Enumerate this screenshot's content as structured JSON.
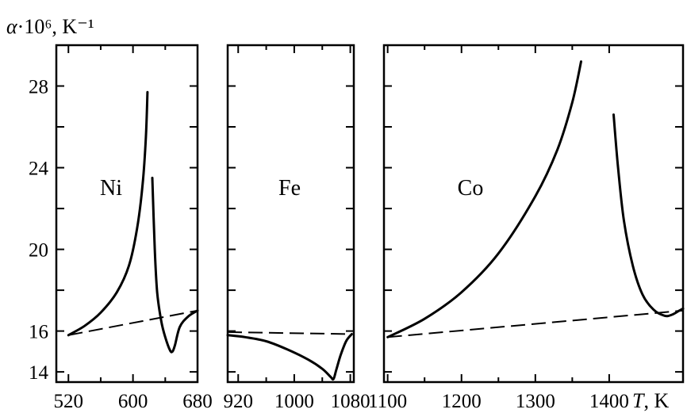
{
  "chart_data": {
    "type": "line",
    "ylabel": "α·10⁶, K⁻¹",
    "xlabel": "T, K",
    "ylim": [
      13.5,
      30
    ],
    "yticks": [
      14,
      16,
      20,
      24,
      28
    ],
    "ytick_labels": [
      "14",
      "16",
      "20",
      "24",
      "28"
    ],
    "panels": [
      {
        "label": "Ni",
        "xlim": [
          505,
          680
        ],
        "xticks": [
          520,
          600,
          680
        ],
        "xtick_labels": [
          "520",
          "600",
          "680"
        ],
        "series": [
          {
            "style": "solid",
            "points": [
              [
                520,
                15.8
              ],
              [
                540,
                16.25
              ],
              [
                560,
                16.9
              ],
              [
                580,
                17.9
              ],
              [
                595,
                19.2
              ],
              [
                605,
                21.0
              ],
              [
                612,
                23.2
              ],
              [
                616,
                25.5
              ],
              [
                618,
                27.7
              ]
            ]
          },
          {
            "style": "solid",
            "points": [
              [
                624,
                23.5
              ],
              [
                627,
                20.0
              ],
              [
                630,
                17.9
              ],
              [
                635,
                16.5
              ],
              [
                640,
                15.7
              ],
              [
                646,
                15.05
              ],
              [
                649,
                15.0
              ],
              [
                652,
                15.3
              ],
              [
                658,
                16.2
              ],
              [
                668,
                16.7
              ],
              [
                680,
                17.0
              ]
            ]
          },
          {
            "style": "dashed",
            "points": [
              [
                520,
                15.8
              ],
              [
                680,
                17.0
              ]
            ]
          }
        ]
      },
      {
        "label": "Fe",
        "xlim": [
          905,
          1085
        ],
        "xticks": [
          920,
          1000,
          1080
        ],
        "xtick_labels": [
          "920",
          "1000",
          "1080"
        ],
        "series": [
          {
            "style": "solid",
            "points": [
              [
                905,
                15.8
              ],
              [
                930,
                15.7
              ],
              [
                960,
                15.5
              ],
              [
                990,
                15.1
              ],
              [
                1020,
                14.6
              ],
              [
                1040,
                14.15
              ],
              [
                1052,
                13.75
              ],
              [
                1056,
                13.65
              ],
              [
                1060,
                14.1
              ],
              [
                1066,
                14.8
              ],
              [
                1074,
                15.5
              ],
              [
                1082,
                15.85
              ]
            ]
          },
          {
            "style": "dashed",
            "points": [
              [
                905,
                15.95
              ],
              [
                1082,
                15.85
              ]
            ]
          }
        ]
      },
      {
        "label": "Co",
        "xlim": [
          1095,
          1500
        ],
        "xticks": [
          1100,
          1200,
          1300,
          1400
        ],
        "xtick_labels": [
          "1100",
          "1200",
          "1300",
          "1400"
        ],
        "series": [
          {
            "style": "solid",
            "points": [
              [
                1100,
                15.7
              ],
              [
                1150,
                16.6
              ],
              [
                1200,
                17.9
              ],
              [
                1250,
                19.8
              ],
              [
                1300,
                22.6
              ],
              [
                1330,
                24.9
              ],
              [
                1350,
                27.2
              ],
              [
                1362,
                29.2
              ]
            ]
          },
          {
            "style": "solid",
            "points": [
              [
                1406,
                26.6
              ],
              [
                1412,
                24.0
              ],
              [
                1420,
                21.4
              ],
              [
                1432,
                19.2
              ],
              [
                1445,
                17.8
              ],
              [
                1460,
                17.05
              ],
              [
                1475,
                16.75
              ],
              [
                1485,
                16.8
              ],
              [
                1495,
                17.0
              ],
              [
                1500,
                17.1
              ]
            ]
          },
          {
            "style": "dashed",
            "points": [
              [
                1100,
                15.7
              ],
              [
                1500,
                17.0
              ]
            ]
          }
        ]
      }
    ]
  }
}
